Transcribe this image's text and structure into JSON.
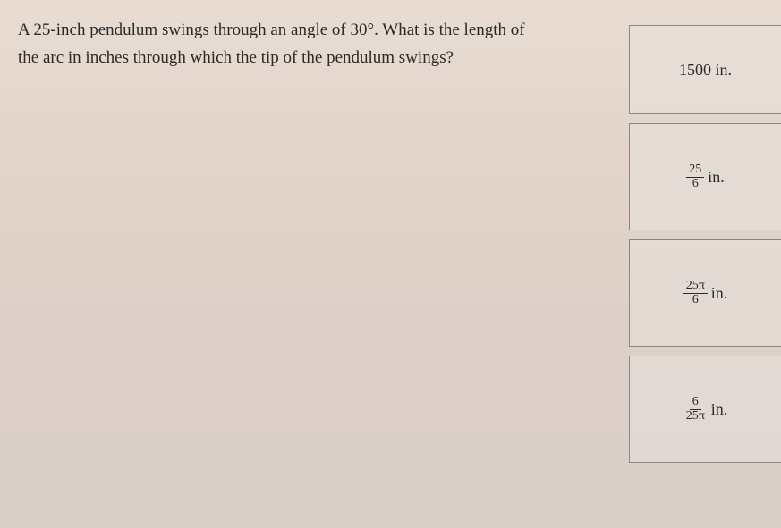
{
  "question": {
    "text": "A 25-inch pendulum swings through an angle of 30°. What is the length of the arc in inches through which the tip of the pendulum swings?",
    "font_size": 19,
    "color": "#2a2a2a"
  },
  "answers": [
    {
      "type": "plain",
      "text": "1500 in."
    },
    {
      "type": "fraction",
      "numerator": "25",
      "denominator": "6",
      "unit": "in."
    },
    {
      "type": "fraction",
      "numerator": "25π",
      "denominator": "6",
      "unit": "in."
    },
    {
      "type": "fraction",
      "numerator": "6",
      "denominator": "25π",
      "unit": "in."
    }
  ],
  "style": {
    "box_border": "#888888",
    "box_bg": "rgba(230,225,220,0.55)",
    "background_gradient": [
      "#e8dcd2",
      "#d8cec8"
    ]
  }
}
